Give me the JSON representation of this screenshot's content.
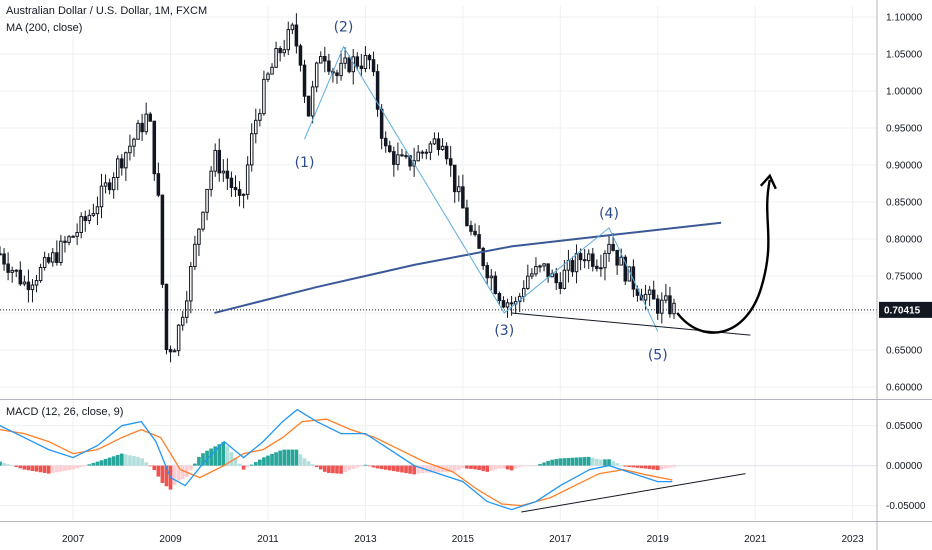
{
  "header": {
    "title": "Australian Dollar / U.S. Dollar, 1M, FXCM",
    "ma_indicator": "MA (200, close)",
    "macd_indicator": "MACD (12, 26, close, 9)"
  },
  "colors": {
    "up": "#26a69a",
    "down": "#ef5350",
    "candle": "#131722",
    "ma": "#3b5998",
    "wave": "#5dade2",
    "macd_line": "#2196f3",
    "signal_line": "#ff7f27",
    "hist_pos_strong": "#26a69a",
    "hist_pos_weak": "#b2dfdb",
    "hist_neg_strong": "#ef5350",
    "hist_neg_weak": "#ffcdd2",
    "grid": "#eef0f3"
  },
  "current_price": "0.70415",
  "chart_data": [
    {
      "type": "candlestick",
      "title": "Australian Dollar / U.S. Dollar, 1M, FXCM",
      "x_axis": {
        "ticks": [
          "2007",
          "2009",
          "2011",
          "2013",
          "2015",
          "2017",
          "2019",
          "2021",
          "2023"
        ],
        "range": [
          2005.5,
          2023.5
        ]
      },
      "y_axis": {
        "ticks": [
          "1.10000",
          "1.05000",
          "1.00000",
          "0.95000",
          "0.90000",
          "0.85000",
          "0.80000",
          "0.75000",
          "0.70000",
          "0.65000",
          "0.60000"
        ],
        "range": [
          0.585,
          1.115
        ]
      },
      "grid": true,
      "price_path": [
        [
          2005.5,
          0.78
        ],
        [
          2006.0,
          0.74
        ],
        [
          2006.4,
          0.76
        ],
        [
          2006.8,
          0.79
        ],
        [
          2007.2,
          0.82
        ],
        [
          2007.6,
          0.86
        ],
        [
          2007.9,
          0.9
        ],
        [
          2008.2,
          0.93
        ],
        [
          2008.55,
          0.97
        ],
        [
          2008.75,
          0.85
        ],
        [
          2008.9,
          0.65
        ],
        [
          2009.1,
          0.66
        ],
        [
          2009.4,
          0.75
        ],
        [
          2009.7,
          0.86
        ],
        [
          2009.9,
          0.91
        ],
        [
          2010.2,
          0.88
        ],
        [
          2010.45,
          0.84
        ],
        [
          2010.7,
          0.95
        ],
        [
          2010.95,
          1.01
        ],
        [
          2011.2,
          1.05
        ],
        [
          2011.5,
          1.08
        ],
        [
          2011.7,
          1.04
        ],
        [
          2011.8,
          0.96
        ],
        [
          2012.1,
          1.06
        ],
        [
          2012.4,
          1.02
        ],
        [
          2012.7,
          1.04
        ],
        [
          2013.1,
          1.04
        ],
        [
          2013.4,
          0.92
        ],
        [
          2013.8,
          0.9
        ],
        [
          2014.2,
          0.92
        ],
        [
          2014.6,
          0.94
        ],
        [
          2014.8,
          0.88
        ],
        [
          2015.2,
          0.8
        ],
        [
          2015.5,
          0.76
        ],
        [
          2015.8,
          0.72
        ],
        [
          2016.1,
          0.71
        ],
        [
          2016.3,
          0.75
        ],
        [
          2016.7,
          0.76
        ],
        [
          2016.9,
          0.74
        ],
        [
          2017.2,
          0.76
        ],
        [
          2017.5,
          0.78
        ],
        [
          2017.8,
          0.77
        ],
        [
          2018.0,
          0.8
        ],
        [
          2018.2,
          0.77
        ],
        [
          2018.5,
          0.74
        ],
        [
          2018.8,
          0.72
        ],
        [
          2019.0,
          0.71
        ],
        [
          2019.2,
          0.71
        ],
        [
          2019.35,
          0.704
        ]
      ],
      "moving_average": {
        "name": "MA (200, close)",
        "points": [
          [
            2009.9,
            0.7
          ],
          [
            2012.0,
            0.735
          ],
          [
            2014.0,
            0.765
          ],
          [
            2016.0,
            0.79
          ],
          [
            2018.0,
            0.805
          ],
          [
            2020.3,
            0.822
          ]
        ]
      },
      "elliott_wave": {
        "points": [
          [
            2011.75,
            0.935
          ],
          [
            2012.55,
            1.06
          ],
          [
            2015.85,
            0.7
          ],
          [
            2018.0,
            0.815
          ],
          [
            2019.0,
            0.675
          ]
        ],
        "labels": [
          "(1)",
          "(2)",
          "(3)",
          "(4)",
          "(5)"
        ]
      },
      "support_line": [
        [
          2016.0,
          0.7
        ],
        [
          2020.9,
          0.67
        ]
      ],
      "projection_arrow": [
        [
          2019.4,
          0.7
        ],
        [
          2020.2,
          0.68
        ],
        [
          2021.3,
          0.88
        ]
      ],
      "price_line": 0.70415
    },
    {
      "type": "line",
      "title": "MACD (12, 26, close, 9)",
      "y_axis": {
        "ticks": [
          "0.05000",
          "0.00000",
          "-0.05000"
        ],
        "range": [
          -0.068,
          0.082
        ]
      },
      "macd": [
        [
          2005.5,
          0.05
        ],
        [
          2006.0,
          0.035
        ],
        [
          2006.5,
          0.02
        ],
        [
          2007.0,
          0.01
        ],
        [
          2007.5,
          0.025
        ],
        [
          2008.0,
          0.05
        ],
        [
          2008.4,
          0.055
        ],
        [
          2008.7,
          0.03
        ],
        [
          2009.0,
          -0.015
        ],
        [
          2009.3,
          -0.025
        ],
        [
          2009.7,
          0.005
        ],
        [
          2010.1,
          0.03
        ],
        [
          2010.5,
          0.01
        ],
        [
          2010.9,
          0.03
        ],
        [
          2011.3,
          0.055
        ],
        [
          2011.6,
          0.07
        ],
        [
          2012.0,
          0.055
        ],
        [
          2012.5,
          0.04
        ],
        [
          2013.0,
          0.04
        ],
        [
          2013.5,
          0.02
        ],
        [
          2014.0,
          0.0
        ],
        [
          2014.5,
          -0.01
        ],
        [
          2015.0,
          -0.02
        ],
        [
          2015.5,
          -0.045
        ],
        [
          2016.0,
          -0.055
        ],
        [
          2016.5,
          -0.045
        ],
        [
          2017.0,
          -0.025
        ],
        [
          2017.6,
          -0.005
        ],
        [
          2018.0,
          0.0
        ],
        [
          2018.5,
          -0.01
        ],
        [
          2019.0,
          -0.02
        ],
        [
          2019.3,
          -0.02
        ]
      ],
      "signal": [
        [
          2005.5,
          0.045
        ],
        [
          2006.0,
          0.04
        ],
        [
          2006.5,
          0.03
        ],
        [
          2007.0,
          0.015
        ],
        [
          2007.5,
          0.02
        ],
        [
          2008.0,
          0.035
        ],
        [
          2008.4,
          0.045
        ],
        [
          2008.8,
          0.035
        ],
        [
          2009.2,
          -0.005
        ],
        [
          2009.6,
          -0.015
        ],
        [
          2010.1,
          0.0
        ],
        [
          2010.5,
          0.015
        ],
        [
          2010.9,
          0.02
        ],
        [
          2011.3,
          0.035
        ],
        [
          2011.7,
          0.055
        ],
        [
          2012.2,
          0.058
        ],
        [
          2012.7,
          0.045
        ],
        [
          2013.2,
          0.035
        ],
        [
          2013.7,
          0.02
        ],
        [
          2014.2,
          0.005
        ],
        [
          2014.8,
          -0.008
        ],
        [
          2015.3,
          -0.03
        ],
        [
          2015.8,
          -0.048
        ],
        [
          2016.2,
          -0.05
        ],
        [
          2016.8,
          -0.04
        ],
        [
          2017.3,
          -0.025
        ],
        [
          2017.8,
          -0.01
        ],
        [
          2018.3,
          -0.005
        ],
        [
          2018.8,
          -0.012
        ],
        [
          2019.3,
          -0.018
        ]
      ],
      "trend_line": [
        [
          2016.2,
          -0.058
        ],
        [
          2020.8,
          -0.01
        ]
      ]
    }
  ]
}
